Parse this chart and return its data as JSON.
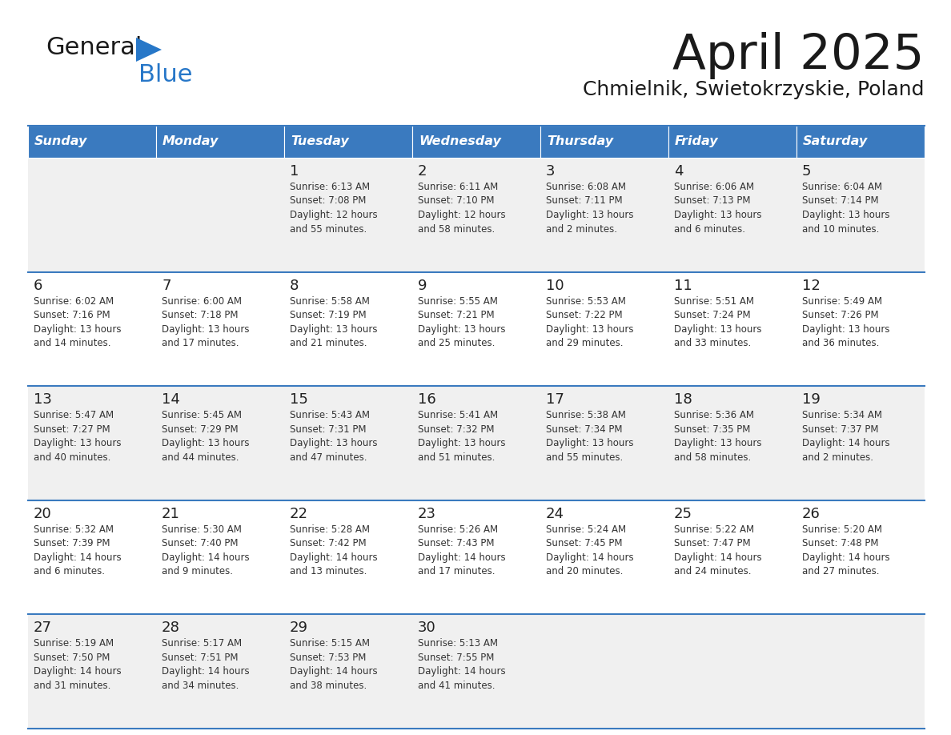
{
  "title": "April 2025",
  "subtitle": "Chmielnik, Swietokrzyskie, Poland",
  "header_color": "#3a7abf",
  "header_text_color": "#ffffff",
  "row_bg_odd": "#f0f0f0",
  "row_bg_even": "#ffffff",
  "text_color": "#333333",
  "day_num_color": "#222222",
  "line_color": "#3a7abf",
  "days_of_week": [
    "Sunday",
    "Monday",
    "Tuesday",
    "Wednesday",
    "Thursday",
    "Friday",
    "Saturday"
  ],
  "weeks": [
    [
      {
        "day": "",
        "info": ""
      },
      {
        "day": "",
        "info": ""
      },
      {
        "day": "1",
        "info": "Sunrise: 6:13 AM\nSunset: 7:08 PM\nDaylight: 12 hours\nand 55 minutes."
      },
      {
        "day": "2",
        "info": "Sunrise: 6:11 AM\nSunset: 7:10 PM\nDaylight: 12 hours\nand 58 minutes."
      },
      {
        "day": "3",
        "info": "Sunrise: 6:08 AM\nSunset: 7:11 PM\nDaylight: 13 hours\nand 2 minutes."
      },
      {
        "day": "4",
        "info": "Sunrise: 6:06 AM\nSunset: 7:13 PM\nDaylight: 13 hours\nand 6 minutes."
      },
      {
        "day": "5",
        "info": "Sunrise: 6:04 AM\nSunset: 7:14 PM\nDaylight: 13 hours\nand 10 minutes."
      }
    ],
    [
      {
        "day": "6",
        "info": "Sunrise: 6:02 AM\nSunset: 7:16 PM\nDaylight: 13 hours\nand 14 minutes."
      },
      {
        "day": "7",
        "info": "Sunrise: 6:00 AM\nSunset: 7:18 PM\nDaylight: 13 hours\nand 17 minutes."
      },
      {
        "day": "8",
        "info": "Sunrise: 5:58 AM\nSunset: 7:19 PM\nDaylight: 13 hours\nand 21 minutes."
      },
      {
        "day": "9",
        "info": "Sunrise: 5:55 AM\nSunset: 7:21 PM\nDaylight: 13 hours\nand 25 minutes."
      },
      {
        "day": "10",
        "info": "Sunrise: 5:53 AM\nSunset: 7:22 PM\nDaylight: 13 hours\nand 29 minutes."
      },
      {
        "day": "11",
        "info": "Sunrise: 5:51 AM\nSunset: 7:24 PM\nDaylight: 13 hours\nand 33 minutes."
      },
      {
        "day": "12",
        "info": "Sunrise: 5:49 AM\nSunset: 7:26 PM\nDaylight: 13 hours\nand 36 minutes."
      }
    ],
    [
      {
        "day": "13",
        "info": "Sunrise: 5:47 AM\nSunset: 7:27 PM\nDaylight: 13 hours\nand 40 minutes."
      },
      {
        "day": "14",
        "info": "Sunrise: 5:45 AM\nSunset: 7:29 PM\nDaylight: 13 hours\nand 44 minutes."
      },
      {
        "day": "15",
        "info": "Sunrise: 5:43 AM\nSunset: 7:31 PM\nDaylight: 13 hours\nand 47 minutes."
      },
      {
        "day": "16",
        "info": "Sunrise: 5:41 AM\nSunset: 7:32 PM\nDaylight: 13 hours\nand 51 minutes."
      },
      {
        "day": "17",
        "info": "Sunrise: 5:38 AM\nSunset: 7:34 PM\nDaylight: 13 hours\nand 55 minutes."
      },
      {
        "day": "18",
        "info": "Sunrise: 5:36 AM\nSunset: 7:35 PM\nDaylight: 13 hours\nand 58 minutes."
      },
      {
        "day": "19",
        "info": "Sunrise: 5:34 AM\nSunset: 7:37 PM\nDaylight: 14 hours\nand 2 minutes."
      }
    ],
    [
      {
        "day": "20",
        "info": "Sunrise: 5:32 AM\nSunset: 7:39 PM\nDaylight: 14 hours\nand 6 minutes."
      },
      {
        "day": "21",
        "info": "Sunrise: 5:30 AM\nSunset: 7:40 PM\nDaylight: 14 hours\nand 9 minutes."
      },
      {
        "day": "22",
        "info": "Sunrise: 5:28 AM\nSunset: 7:42 PM\nDaylight: 14 hours\nand 13 minutes."
      },
      {
        "day": "23",
        "info": "Sunrise: 5:26 AM\nSunset: 7:43 PM\nDaylight: 14 hours\nand 17 minutes."
      },
      {
        "day": "24",
        "info": "Sunrise: 5:24 AM\nSunset: 7:45 PM\nDaylight: 14 hours\nand 20 minutes."
      },
      {
        "day": "25",
        "info": "Sunrise: 5:22 AM\nSunset: 7:47 PM\nDaylight: 14 hours\nand 24 minutes."
      },
      {
        "day": "26",
        "info": "Sunrise: 5:20 AM\nSunset: 7:48 PM\nDaylight: 14 hours\nand 27 minutes."
      }
    ],
    [
      {
        "day": "27",
        "info": "Sunrise: 5:19 AM\nSunset: 7:50 PM\nDaylight: 14 hours\nand 31 minutes."
      },
      {
        "day": "28",
        "info": "Sunrise: 5:17 AM\nSunset: 7:51 PM\nDaylight: 14 hours\nand 34 minutes."
      },
      {
        "day": "29",
        "info": "Sunrise: 5:15 AM\nSunset: 7:53 PM\nDaylight: 14 hours\nand 38 minutes."
      },
      {
        "day": "30",
        "info": "Sunrise: 5:13 AM\nSunset: 7:55 PM\nDaylight: 14 hours\nand 41 minutes."
      },
      {
        "day": "",
        "info": ""
      },
      {
        "day": "",
        "info": ""
      },
      {
        "day": "",
        "info": ""
      }
    ]
  ],
  "logo_general_color": "#1a1a1a",
  "logo_blue_color": "#2777c8",
  "logo_triangle_color": "#2777c8"
}
